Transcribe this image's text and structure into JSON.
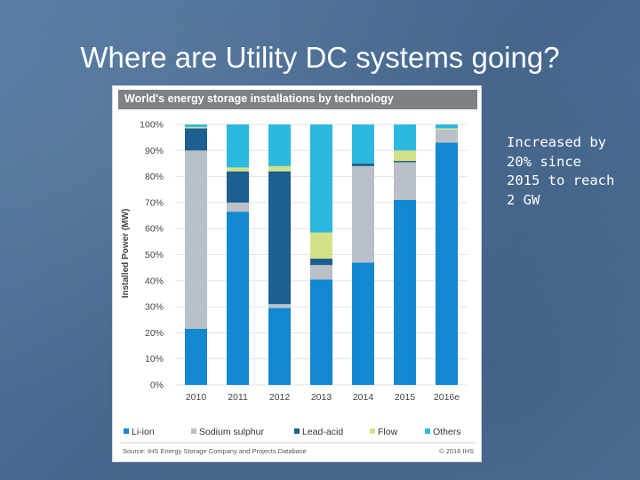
{
  "slide": {
    "title": "Where are Utility DC systems going?",
    "note": "Increased by 20% since 2015 to reach 2 GW"
  },
  "colors": {
    "li_ion": "#1188d0",
    "sodium_sulphur": "#b9c0c7",
    "lead_acid": "#1d5f8f",
    "flow": "#d4e287",
    "others": "#2db8e0",
    "header_bg": "#7e8186"
  },
  "chart_data": {
    "type": "bar",
    "stacked": true,
    "title": "World's energy storage installations by technology",
    "ylabel": "Installed Power (MW)",
    "xlabel": "",
    "ylim": [
      0,
      100
    ],
    "yticks": [
      "0%",
      "10%",
      "20%",
      "30%",
      "40%",
      "50%",
      "60%",
      "70%",
      "80%",
      "90%",
      "100%"
    ],
    "categories": [
      "2010",
      "2011",
      "2012",
      "2013",
      "2014",
      "2015",
      "2016e"
    ],
    "series": [
      {
        "name": "Li-ion",
        "color": "#1188d0",
        "values": [
          21.5,
          66.5,
          29.5,
          40.5,
          47,
          71,
          93
        ]
      },
      {
        "name": "Sodium sulphur",
        "color": "#b9c0c7",
        "values": [
          68.5,
          3.5,
          1.5,
          5.5,
          37,
          14.5,
          5
        ]
      },
      {
        "name": "Lead-acid",
        "color": "#1d5f8f",
        "values": [
          8.5,
          12,
          51,
          2.5,
          1,
          0.5,
          0
        ]
      },
      {
        "name": "Flow",
        "color": "#d4e287",
        "values": [
          0.5,
          1.5,
          2,
          10,
          0,
          4,
          0.5
        ]
      },
      {
        "name": "Others",
        "color": "#2db8e0",
        "values": [
          1,
          16.5,
          16,
          41.5,
          15,
          10,
          1.5
        ]
      }
    ],
    "legend": "bottom",
    "source": "Source: IHS Energy Storage Company and Projects Database",
    "copyright": "© 2016 IHS"
  }
}
